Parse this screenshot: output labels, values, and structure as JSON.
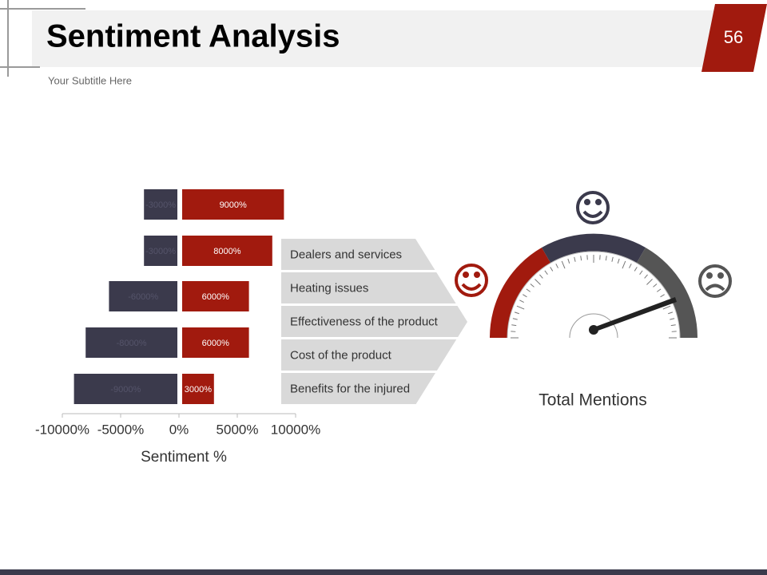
{
  "header": {
    "title": "Sentiment Analysis",
    "subtitle": "Your Subtitle Here",
    "page_number": "56"
  },
  "chart_data": {
    "type": "diverging-bar",
    "categories": [
      "Dealers and services",
      "Heating issues",
      "Effectiveness of the product",
      "Cost of the product",
      "Benefits for the injured"
    ],
    "series": [
      {
        "color": "#3b3a4c",
        "values": [
          -3000,
          -3000,
          -6000,
          -8000,
          -9000
        ],
        "value_labels": [
          "-3000%",
          "-3000%",
          "-6000%",
          "-8000%",
          "-9000%"
        ]
      },
      {
        "color": "#a11a0e",
        "values": [
          9000,
          8000,
          6000,
          6000,
          3000
        ],
        "value_labels": [
          "9000%",
          "8000%",
          "6000%",
          "6000%",
          "3000%"
        ]
      }
    ],
    "xlabel": "Sentiment %",
    "xlim": [
      -10000,
      10000
    ],
    "xticks": [
      {
        "value": -10000,
        "label": "-10000%"
      },
      {
        "value": -5000,
        "label": "-5000%"
      },
      {
        "value": 0,
        "label": "0%"
      },
      {
        "value": 5000,
        "label": "5000%"
      },
      {
        "value": 10000,
        "label": "10000%"
      }
    ]
  },
  "gauge": {
    "title": "Total Mentions"
  }
}
